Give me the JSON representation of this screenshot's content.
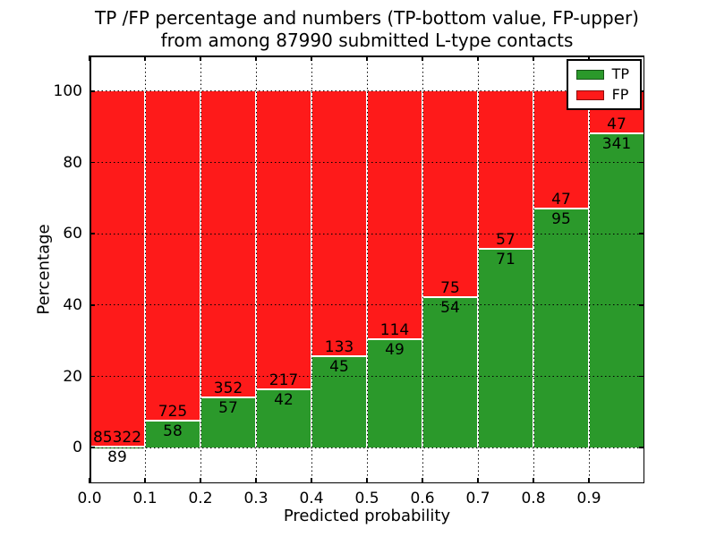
{
  "figure": {
    "title_line1": "TP /FP percentage and numbers (TP-bottom value, FP-upper)",
    "title_line2": "from among 87990 submitted L-type contacts",
    "background": "#ffffff"
  },
  "chart_data": {
    "type": "bar",
    "subtype": "stacked-percentage",
    "title": "TP /FP percentage and numbers (TP-bottom value, FP-upper) from among 87990 submitted L-type contacts",
    "xlabel": "Predicted probability",
    "ylabel": "Percentage",
    "total_contacts": 87990,
    "xlim": [
      0.0,
      1.0
    ],
    "ylim": [
      -10,
      110
    ],
    "bin_width": 0.1,
    "bin_starts": [
      0.0,
      0.1,
      0.2,
      0.3,
      0.4,
      0.5,
      0.6,
      0.7,
      0.8,
      0.9
    ],
    "x_tick_labels": [
      "0.0",
      "0.1",
      "0.2",
      "0.3",
      "0.4",
      "0.5",
      "0.6",
      "0.7",
      "0.8",
      "0.9"
    ],
    "y_ticks": [
      0,
      20,
      40,
      60,
      80,
      100
    ],
    "y_tick_labels": [
      "0",
      "20",
      "40",
      "60",
      "80",
      "100"
    ],
    "grid": "dotted",
    "bar_edge_color": "#ffffff",
    "series": [
      {
        "name": "TP",
        "color": "#2b992b",
        "counts": [
          89,
          58,
          57,
          42,
          45,
          49,
          54,
          71,
          95,
          341
        ]
      },
      {
        "name": "FP",
        "color": "#fe1a1a",
        "counts": [
          85322,
          725,
          352,
          217,
          133,
          114,
          75,
          57,
          47,
          47
        ]
      }
    ],
    "tp_percent_of_bin": [
      0.1,
      7.41,
      13.94,
      16.22,
      25.28,
      30.06,
      41.86,
      55.47,
      66.9,
      87.89
    ],
    "legend": {
      "position": "upper right",
      "entries": [
        {
          "label": "TP",
          "color": "#2b992b"
        },
        {
          "label": "FP",
          "color": "#fe1a1a"
        }
      ]
    }
  }
}
